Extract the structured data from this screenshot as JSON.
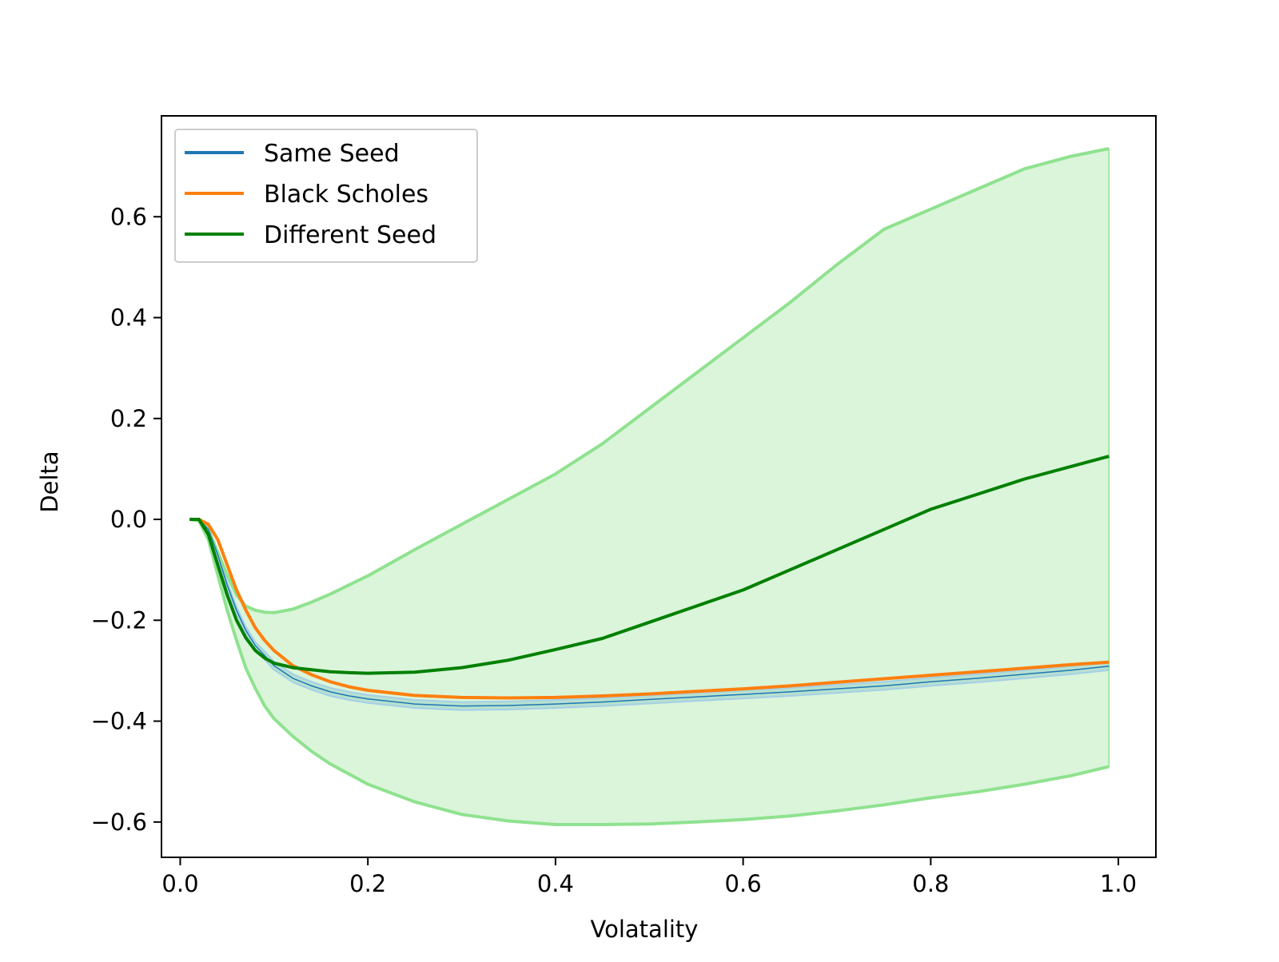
{
  "chart_data": {
    "type": "line",
    "title": "",
    "xlabel": "Volatality",
    "ylabel": "Delta",
    "xlim": [
      -0.02,
      1.04
    ],
    "ylim": [
      -0.67,
      0.8
    ],
    "x_ticks": [
      {
        "value": 0.0,
        "label": "0.0"
      },
      {
        "value": 0.2,
        "label": "0.2"
      },
      {
        "value": 0.4,
        "label": "0.4"
      },
      {
        "value": 0.6,
        "label": "0.6"
      },
      {
        "value": 0.8,
        "label": "0.8"
      },
      {
        "value": 1.0,
        "label": "1.0"
      }
    ],
    "y_ticks": [
      {
        "value": -0.6,
        "label": "−0.6"
      },
      {
        "value": -0.4,
        "label": "−0.4"
      },
      {
        "value": -0.2,
        "label": "−0.2"
      },
      {
        "value": 0.0,
        "label": "0.0"
      },
      {
        "value": 0.2,
        "label": "0.2"
      },
      {
        "value": 0.4,
        "label": "0.4"
      },
      {
        "value": 0.6,
        "label": "0.6"
      }
    ],
    "grid": false,
    "legend_position": "upper-left",
    "x": [
      0.01,
      0.02,
      0.03,
      0.04,
      0.05,
      0.06,
      0.07,
      0.08,
      0.09,
      0.1,
      0.12,
      0.14,
      0.16,
      0.18,
      0.2,
      0.25,
      0.3,
      0.35,
      0.4,
      0.45,
      0.5,
      0.55,
      0.6,
      0.65,
      0.7,
      0.75,
      0.8,
      0.85,
      0.9,
      0.95,
      0.99
    ],
    "series": [
      {
        "name": "Same Seed",
        "color": "#1f77b4",
        "band_color": "#a6cfe6",
        "values": [
          0.0,
          0.0,
          -0.02,
          -0.07,
          -0.13,
          -0.18,
          -0.22,
          -0.25,
          -0.27,
          -0.29,
          -0.315,
          -0.33,
          -0.342,
          -0.35,
          -0.356,
          -0.366,
          -0.37,
          -0.369,
          -0.366,
          -0.362,
          -0.357,
          -0.352,
          -0.347,
          -0.342,
          -0.336,
          -0.33,
          -0.322,
          -0.315,
          -0.307,
          -0.299,
          -0.291
        ],
        "band_lower": [
          0.0,
          -0.002,
          -0.024,
          -0.075,
          -0.136,
          -0.186,
          -0.227,
          -0.257,
          -0.278,
          -0.298,
          -0.323,
          -0.338,
          -0.35,
          -0.358,
          -0.364,
          -0.374,
          -0.378,
          -0.377,
          -0.374,
          -0.37,
          -0.365,
          -0.36,
          -0.355,
          -0.35,
          -0.344,
          -0.338,
          -0.33,
          -0.323,
          -0.315,
          -0.307,
          -0.299
        ],
        "band_upper": [
          0.0,
          0.002,
          -0.016,
          -0.065,
          -0.124,
          -0.174,
          -0.213,
          -0.243,
          -0.262,
          -0.282,
          -0.307,
          -0.322,
          -0.334,
          -0.342,
          -0.348,
          -0.358,
          -0.362,
          -0.361,
          -0.358,
          -0.354,
          -0.349,
          -0.344,
          -0.339,
          -0.334,
          -0.328,
          -0.322,
          -0.314,
          -0.307,
          -0.299,
          -0.291,
          -0.283
        ]
      },
      {
        "name": "Black Scholes",
        "color": "#ff7f0e",
        "values": [
          0.0,
          0.0,
          -0.01,
          -0.04,
          -0.09,
          -0.14,
          -0.18,
          -0.215,
          -0.24,
          -0.26,
          -0.29,
          -0.308,
          -0.322,
          -0.332,
          -0.339,
          -0.349,
          -0.353,
          -0.354,
          -0.353,
          -0.35,
          -0.346,
          -0.341,
          -0.336,
          -0.33,
          -0.323,
          -0.316,
          -0.309,
          -0.302,
          -0.295,
          -0.288,
          -0.283
        ]
      },
      {
        "name": "Different Seed",
        "color": "#008000",
        "band_color": "#8fe28f",
        "values": [
          0.0,
          0.0,
          -0.03,
          -0.09,
          -0.15,
          -0.2,
          -0.235,
          -0.26,
          -0.275,
          -0.285,
          -0.294,
          -0.298,
          -0.302,
          -0.304,
          -0.305,
          -0.303,
          -0.294,
          -0.279,
          -0.258,
          -0.236,
          -0.204,
          -0.172,
          -0.14,
          -0.1,
          -0.06,
          -0.02,
          0.02,
          0.05,
          0.08,
          0.105,
          0.125
        ],
        "band_lower": [
          0.0,
          -0.003,
          -0.04,
          -0.11,
          -0.18,
          -0.24,
          -0.295,
          -0.335,
          -0.37,
          -0.395,
          -0.43,
          -0.46,
          -0.485,
          -0.505,
          -0.525,
          -0.56,
          -0.585,
          -0.598,
          -0.605,
          -0.605,
          -0.604,
          -0.6,
          -0.595,
          -0.588,
          -0.578,
          -0.566,
          -0.552,
          -0.54,
          -0.525,
          -0.508,
          -0.49
        ],
        "band_upper": [
          0.0,
          0.0,
          -0.02,
          -0.065,
          -0.11,
          -0.15,
          -0.172,
          -0.18,
          -0.184,
          -0.185,
          -0.178,
          -0.164,
          -0.148,
          -0.13,
          -0.112,
          -0.06,
          -0.01,
          0.04,
          0.09,
          0.15,
          0.22,
          0.29,
          0.36,
          0.43,
          0.505,
          0.575,
          0.615,
          0.655,
          0.695,
          0.72,
          0.735
        ]
      }
    ]
  }
}
